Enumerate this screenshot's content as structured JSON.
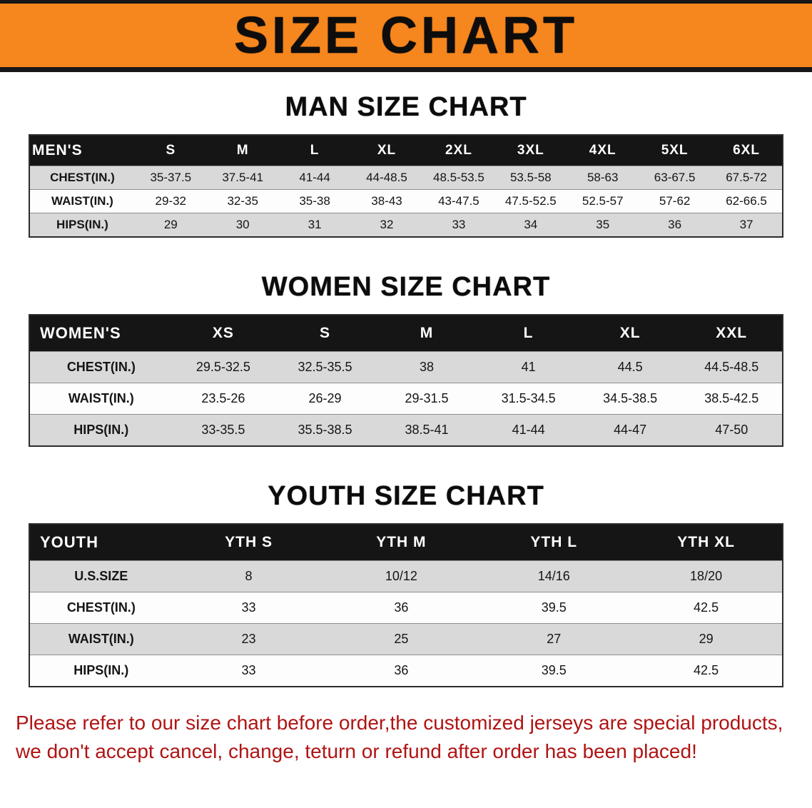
{
  "banner": {
    "title": "SIZE CHART"
  },
  "colors": {
    "banner_bg": "#f6861e",
    "table_header_bg": "#151515",
    "row_shaded_bg": "#d9d9d9",
    "notice_text": "#b01414"
  },
  "sections": [
    {
      "heading": "MAN SIZE CHART",
      "header": [
        "MEN'S",
        "S",
        "M",
        "L",
        "XL",
        "2XL",
        "3XL",
        "4XL",
        "5XL",
        "6XL"
      ],
      "rows": [
        {
          "label": "CHEST(IN.)",
          "values": [
            "35-37.5",
            "37.5-41",
            "41-44",
            "44-48.5",
            "48.5-53.5",
            "53.5-58",
            "58-63",
            "63-67.5",
            "67.5-72"
          ]
        },
        {
          "label": "WAIST(IN.)",
          "values": [
            "29-32",
            "32-35",
            "35-38",
            "38-43",
            "43-47.5",
            "47.5-52.5",
            "52.5-57",
            "57-62",
            "62-66.5"
          ]
        },
        {
          "label": "HIPS(IN.)",
          "values": [
            "29",
            "30",
            "31",
            "32",
            "33",
            "34",
            "35",
            "36",
            "37"
          ]
        }
      ]
    },
    {
      "heading": "WOMEN SIZE CHART",
      "header": [
        "WOMEN'S",
        "XS",
        "S",
        "M",
        "L",
        "XL",
        "XXL"
      ],
      "rows": [
        {
          "label": "CHEST(IN.)",
          "values": [
            "29.5-32.5",
            "32.5-35.5",
            "38",
            "41",
            "44.5",
            "44.5-48.5"
          ]
        },
        {
          "label": "WAIST(IN.)",
          "values": [
            "23.5-26",
            "26-29",
            "29-31.5",
            "31.5-34.5",
            "34.5-38.5",
            "38.5-42.5"
          ]
        },
        {
          "label": "HIPS(IN.)",
          "values": [
            "33-35.5",
            "35.5-38.5",
            "38.5-41",
            "41-44",
            "44-47",
            "47-50"
          ]
        }
      ]
    },
    {
      "heading": "YOUTH SIZE CHART",
      "header": [
        "YOUTH",
        "YTH S",
        "YTH M",
        "YTH L",
        "YTH XL"
      ],
      "rows": [
        {
          "label": "U.S.SIZE",
          "values": [
            "8",
            "10/12",
            "14/16",
            "18/20"
          ]
        },
        {
          "label": "CHEST(IN.)",
          "values": [
            "33",
            "36",
            "39.5",
            "42.5"
          ]
        },
        {
          "label": "WAIST(IN.)",
          "values": [
            "23",
            "25",
            "27",
            "29"
          ]
        },
        {
          "label": "HIPS(IN.)",
          "values": [
            "33",
            "36",
            "39.5",
            "42.5"
          ]
        }
      ]
    }
  ],
  "footer": {
    "line1": "Please refer to our size chart before order,the customized jerseys are special products,",
    "line2": "we don't accept cancel, change, teturn or refund after order has been placed!"
  }
}
